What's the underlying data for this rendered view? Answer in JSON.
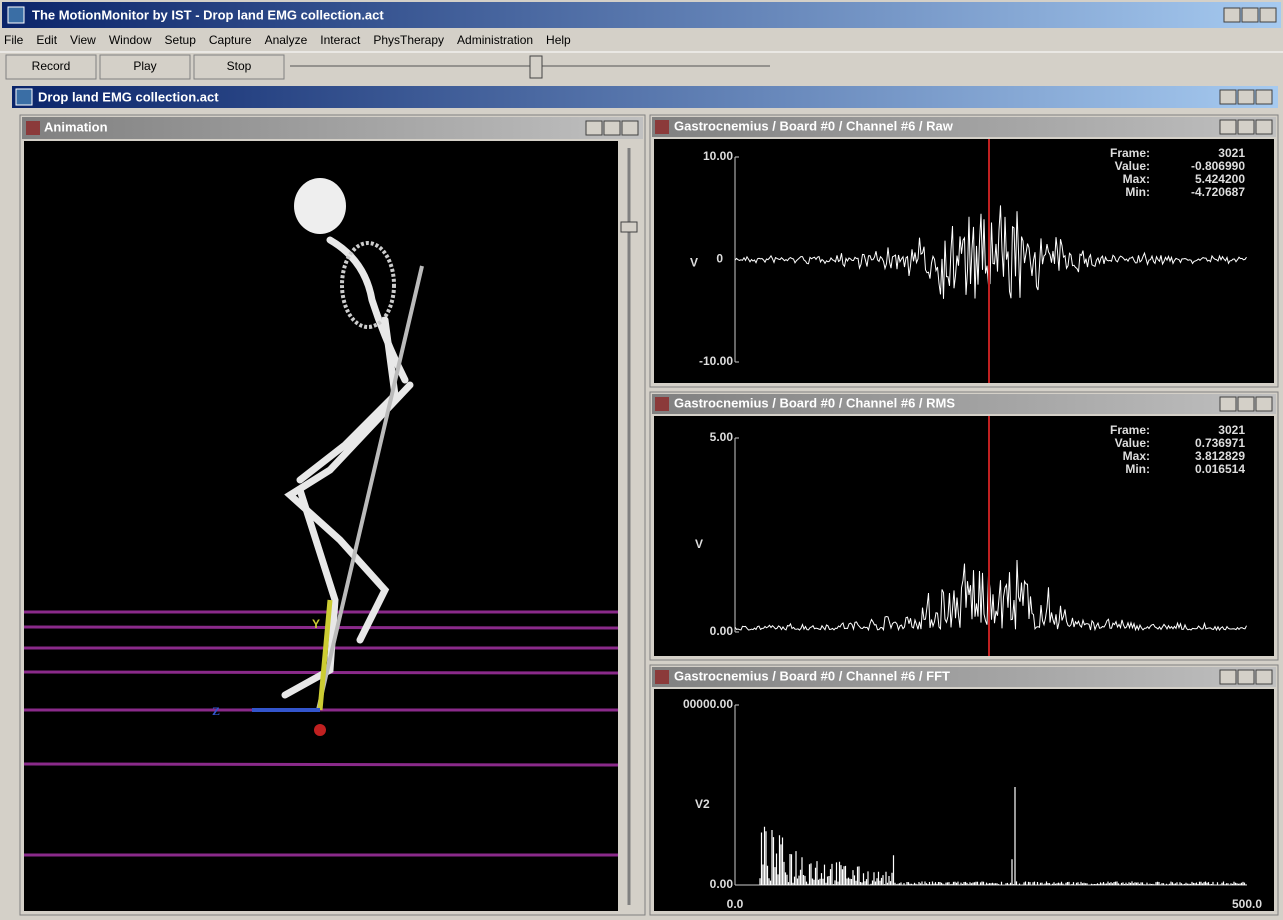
{
  "window": {
    "title": "The MotionMonitor by IST - Drop land EMG collection.act"
  },
  "menu": [
    "File",
    "Edit",
    "View",
    "Window",
    "Setup",
    "Capture",
    "Analyze",
    "Interact",
    "PhysTherapy",
    "Administration",
    "Help"
  ],
  "toolbar": [
    "Record",
    "Play",
    "Stop"
  ],
  "document": {
    "title": "Drop land EMG collection.act"
  },
  "animation": {
    "title": "Animation",
    "labels": [
      "Y",
      "Z"
    ]
  },
  "panels": [
    {
      "title": "Gastrocnemius / Board #0 / Channel #6 / Raw",
      "y_max": "10.00",
      "y_zero": "0",
      "y_min": "-10.00",
      "unit": "V",
      "stats": [
        {
          "label": "Frame:",
          "value": "3021"
        },
        {
          "label": "Value:",
          "value": "-0.806990"
        },
        {
          "label": "Max:",
          "value": "5.424200"
        },
        {
          "label": "Min:",
          "value": "-4.720687"
        }
      ]
    },
    {
      "title": "Gastrocnemius / Board #0 / Channel #6 / RMS",
      "y_max": "5.00",
      "y_min": "0.00",
      "unit": "V",
      "stats": [
        {
          "label": "Frame:",
          "value": "3021"
        },
        {
          "label": "Value:",
          "value": "0.736971"
        },
        {
          "label": "Max:",
          "value": "3.812829"
        },
        {
          "label": "Min:",
          "value": "0.016514"
        }
      ]
    },
    {
      "title": "Gastrocnemius / Board #0 / Channel #6 / FFT",
      "y_max": "00000.00",
      "y_min": "0.00",
      "unit": "V2",
      "x_min": "0.0",
      "x_max": "500.0"
    }
  ]
}
